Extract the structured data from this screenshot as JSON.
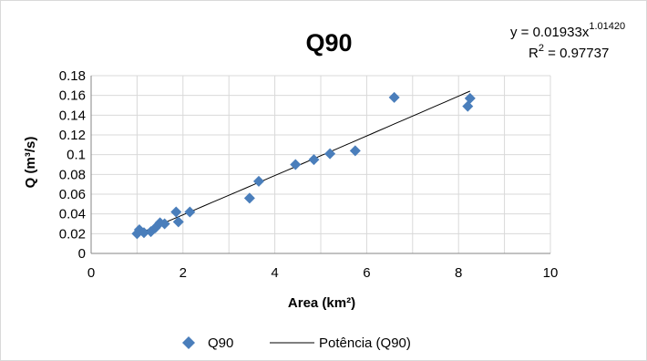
{
  "chart_data": {
    "type": "scatter",
    "title": "Q90",
    "xlabel": "Area (km²)",
    "ylabel": "Q  (m³/s)",
    "xlim": [
      0,
      10
    ],
    "ylim": [
      0,
      0.18
    ],
    "x_ticks": [
      0,
      2,
      4,
      6,
      8,
      10
    ],
    "y_ticks": [
      0,
      0.02,
      0.04,
      0.06,
      0.08,
      0.1,
      0.12,
      0.14,
      0.16,
      0.18
    ],
    "y_tick_labels": [
      "0",
      "0.02",
      "0.04",
      "0.06",
      "0.08",
      "0.1",
      "0.12",
      "0.14",
      "0.16",
      "0.18"
    ],
    "grid": true,
    "legend_position": "bottom",
    "series": [
      {
        "name": "Q90",
        "marker": "diamond",
        "color": "#4a7ebb",
        "points": [
          {
            "x": 1.0,
            "y": 0.02
          },
          {
            "x": 1.05,
            "y": 0.024
          },
          {
            "x": 1.15,
            "y": 0.021
          },
          {
            "x": 1.3,
            "y": 0.022
          },
          {
            "x": 1.4,
            "y": 0.026
          },
          {
            "x": 1.5,
            "y": 0.031
          },
          {
            "x": 1.6,
            "y": 0.03
          },
          {
            "x": 1.85,
            "y": 0.042
          },
          {
            "x": 1.9,
            "y": 0.032
          },
          {
            "x": 2.15,
            "y": 0.042
          },
          {
            "x": 3.45,
            "y": 0.056
          },
          {
            "x": 3.65,
            "y": 0.073
          },
          {
            "x": 4.45,
            "y": 0.09
          },
          {
            "x": 4.85,
            "y": 0.095
          },
          {
            "x": 5.2,
            "y": 0.101
          },
          {
            "x": 5.75,
            "y": 0.104
          },
          {
            "x": 6.6,
            "y": 0.158
          },
          {
            "x": 8.2,
            "y": 0.149
          },
          {
            "x": 8.25,
            "y": 0.157
          }
        ]
      },
      {
        "name": "Potência (Q90)",
        "type": "line",
        "color": "#000000",
        "trend": {
          "kind": "power",
          "a": 0.01933,
          "b": 1.0142,
          "x_from": 1.0,
          "x_to": 8.25
        }
      }
    ],
    "annotations": {
      "equation_main": "y = 0.01933x",
      "equation_exponent": "1.01420",
      "r2_prefix": "R",
      "r2_exponent": "2",
      "r2_value": " = 0.97737"
    }
  }
}
